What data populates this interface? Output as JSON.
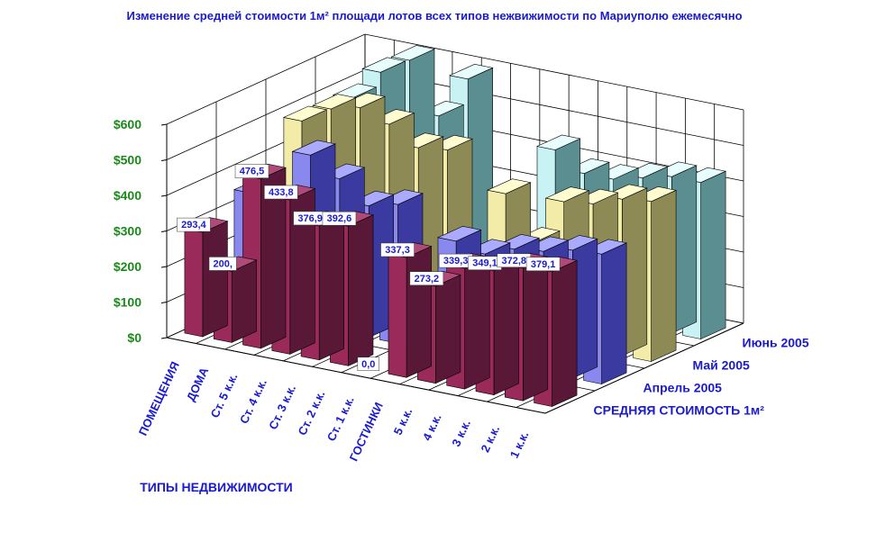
{
  "chart_data": {
    "type": "bar",
    "title": "Изменение средней стоимости 1м² площади лотов всех типов нежвижимости по Мариуполю ежемесячно",
    "xlabel": "ТИПЫ НЕДВИЖИМОСТИ",
    "ylabel": "",
    "ylim": [
      0,
      600
    ],
    "yticks": [
      "$0",
      "$100",
      "$200",
      "$300",
      "$400",
      "$500",
      "$600"
    ],
    "grid": true,
    "categories": [
      "ПОМЕЩЕНИЯ",
      "ДОМА",
      "Ст. 5 к.к.",
      "Ст. 4 к.к.",
      "Ст. 3 к.к.",
      "Ст. 2 к.к.",
      "Ст. 1 к.к.",
      "ГОСТИНКИ",
      "5 к.к.",
      "4 к.к.",
      "3 к.к.",
      "2 к.к.",
      "1 к.к."
    ],
    "series": [
      {
        "name": "СРЕДНЯЯ СТОИМОСТЬ 1м²",
        "values": [
          293.4,
          200.0,
          476.5,
          433.8,
          376.9,
          392.6,
          0.0,
          337.3,
          273.2,
          339.3,
          349.1,
          372.8,
          379.1
        ],
        "labels": [
          "293,4",
          "200,",
          "476,5",
          "433,8",
          "376,9",
          "392,6",
          "0,0",
          "337,3",
          "273,2",
          "339,3",
          "349,1",
          "372,8",
          "379,1"
        ]
      },
      {
        "name": "Апрель 2005",
        "values": [
          340,
          260,
          480,
          430,
          370,
          390,
          0,
          320,
          300,
          330,
          340,
          360,
          365
        ]
      },
      {
        "name": "Май 2005",
        "values": [
          480,
          530,
          550,
          520,
          470,
          480,
          0,
          390,
          270,
          400,
          410,
          440,
          450
        ]
      },
      {
        "name": "Июнь 2005",
        "values": [
          480,
          570,
          620,
          480,
          600,
          0,
          0,
          450,
          400,
          400,
          420,
          440,
          440
        ]
      }
    ],
    "colors": {
      "series": [
        "#9a2a5a",
        "#8888ee",
        "#f2eca8",
        "#c8f2f4"
      ],
      "series_dark": [
        "#5a1838",
        "#3a3aa0",
        "#8e8a56",
        "#5a8e90"
      ],
      "series_top": [
        "#b04a78",
        "#aaaaff",
        "#fffcd0",
        "#e8fdfd"
      ]
    }
  }
}
